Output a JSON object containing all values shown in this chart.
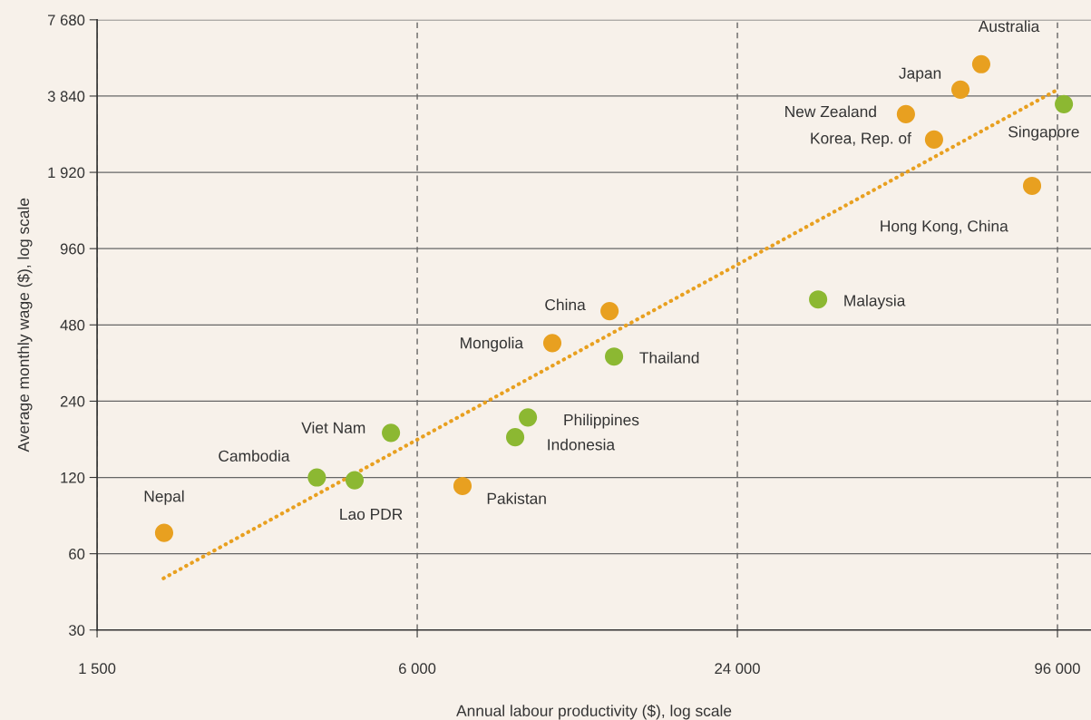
{
  "chart_data": {
    "type": "scatter",
    "xlabel": "Annual labour productivity ($), log scale",
    "ylabel": "Average monthly wage ($), log scale",
    "log": "xy",
    "grid": true,
    "marker": "circle",
    "xlim": [
      1500,
      111000
    ],
    "xticks": [
      {
        "value": 1500,
        "label": "1 500"
      },
      {
        "value": 6000,
        "label": "6 000"
      },
      {
        "value": 24000,
        "label": "24 000"
      },
      {
        "value": 96000,
        "label": "96 000"
      }
    ],
    "ylim": [
      30,
      7680
    ],
    "yticks": [
      30,
      60,
      120,
      240,
      480,
      960,
      {
        "value": 1920,
        "label": "1 920"
      },
      {
        "value": 3840,
        "label": "3 840"
      },
      {
        "value": 7680,
        "label": "7 680"
      }
    ],
    "series": [
      {
        "type": "line",
        "line_style": "dotted",
        "marker": "none",
        "color": "#e8a020",
        "x": [
          2000,
          96000
        ],
        "values": [
          48,
          4070
        ]
      },
      {
        "color": "#e8a020",
        "x": [
          2005,
          7300,
          10770,
          13800,
          49800,
          56250,
          63070,
          69000,
          86000
        ],
        "values": [
          72.5,
          111,
          407,
          544,
          3258,
          2586,
          4071,
          5130,
          1698
        ]
      },
      {
        "color": "#8cb832",
        "x": [
          3885,
          4575,
          5355,
          9170,
          9690,
          14070,
          34050,
          98700
        ],
        "values": [
          120,
          117,
          180,
          173,
          207,
          360,
          605,
          3568
        ]
      }
    ],
    "annotations": [
      {
        "text": "Nepal",
        "x": 2005,
        "y": 72.5
      },
      {
        "text": "Cambodia",
        "x": 3885,
        "y": 120
      },
      {
        "text": "Lao PDR",
        "x": 4575,
        "y": 117
      },
      {
        "text": "Viet Nam",
        "x": 5355,
        "y": 180
      },
      {
        "text": "Pakistan",
        "x": 7300,
        "y": 111
      },
      {
        "text": "Indonesia",
        "x": 9170,
        "y": 173
      },
      {
        "text": "Philippines",
        "x": 9690,
        "y": 207
      },
      {
        "text": "Mongolia",
        "x": 10770,
        "y": 407
      },
      {
        "text": "China",
        "x": 13800,
        "y": 544
      },
      {
        "text": "Thailand",
        "x": 14070,
        "y": 360
      },
      {
        "text": "Malaysia",
        "x": 34050,
        "y": 605
      },
      {
        "text": "New Zealand",
        "x": 49800,
        "y": 3258
      },
      {
        "text": "Korea, Rep. of",
        "x": 56250,
        "y": 2586
      },
      {
        "text": "Japan",
        "x": 63070,
        "y": 4071
      },
      {
        "text": "Australia",
        "x": 69000,
        "y": 5130
      },
      {
        "text": "Hong Kong, China",
        "x": 86000,
        "y": 1698
      },
      {
        "text": "Singapore",
        "x": 98700,
        "y": 3568
      }
    ]
  }
}
